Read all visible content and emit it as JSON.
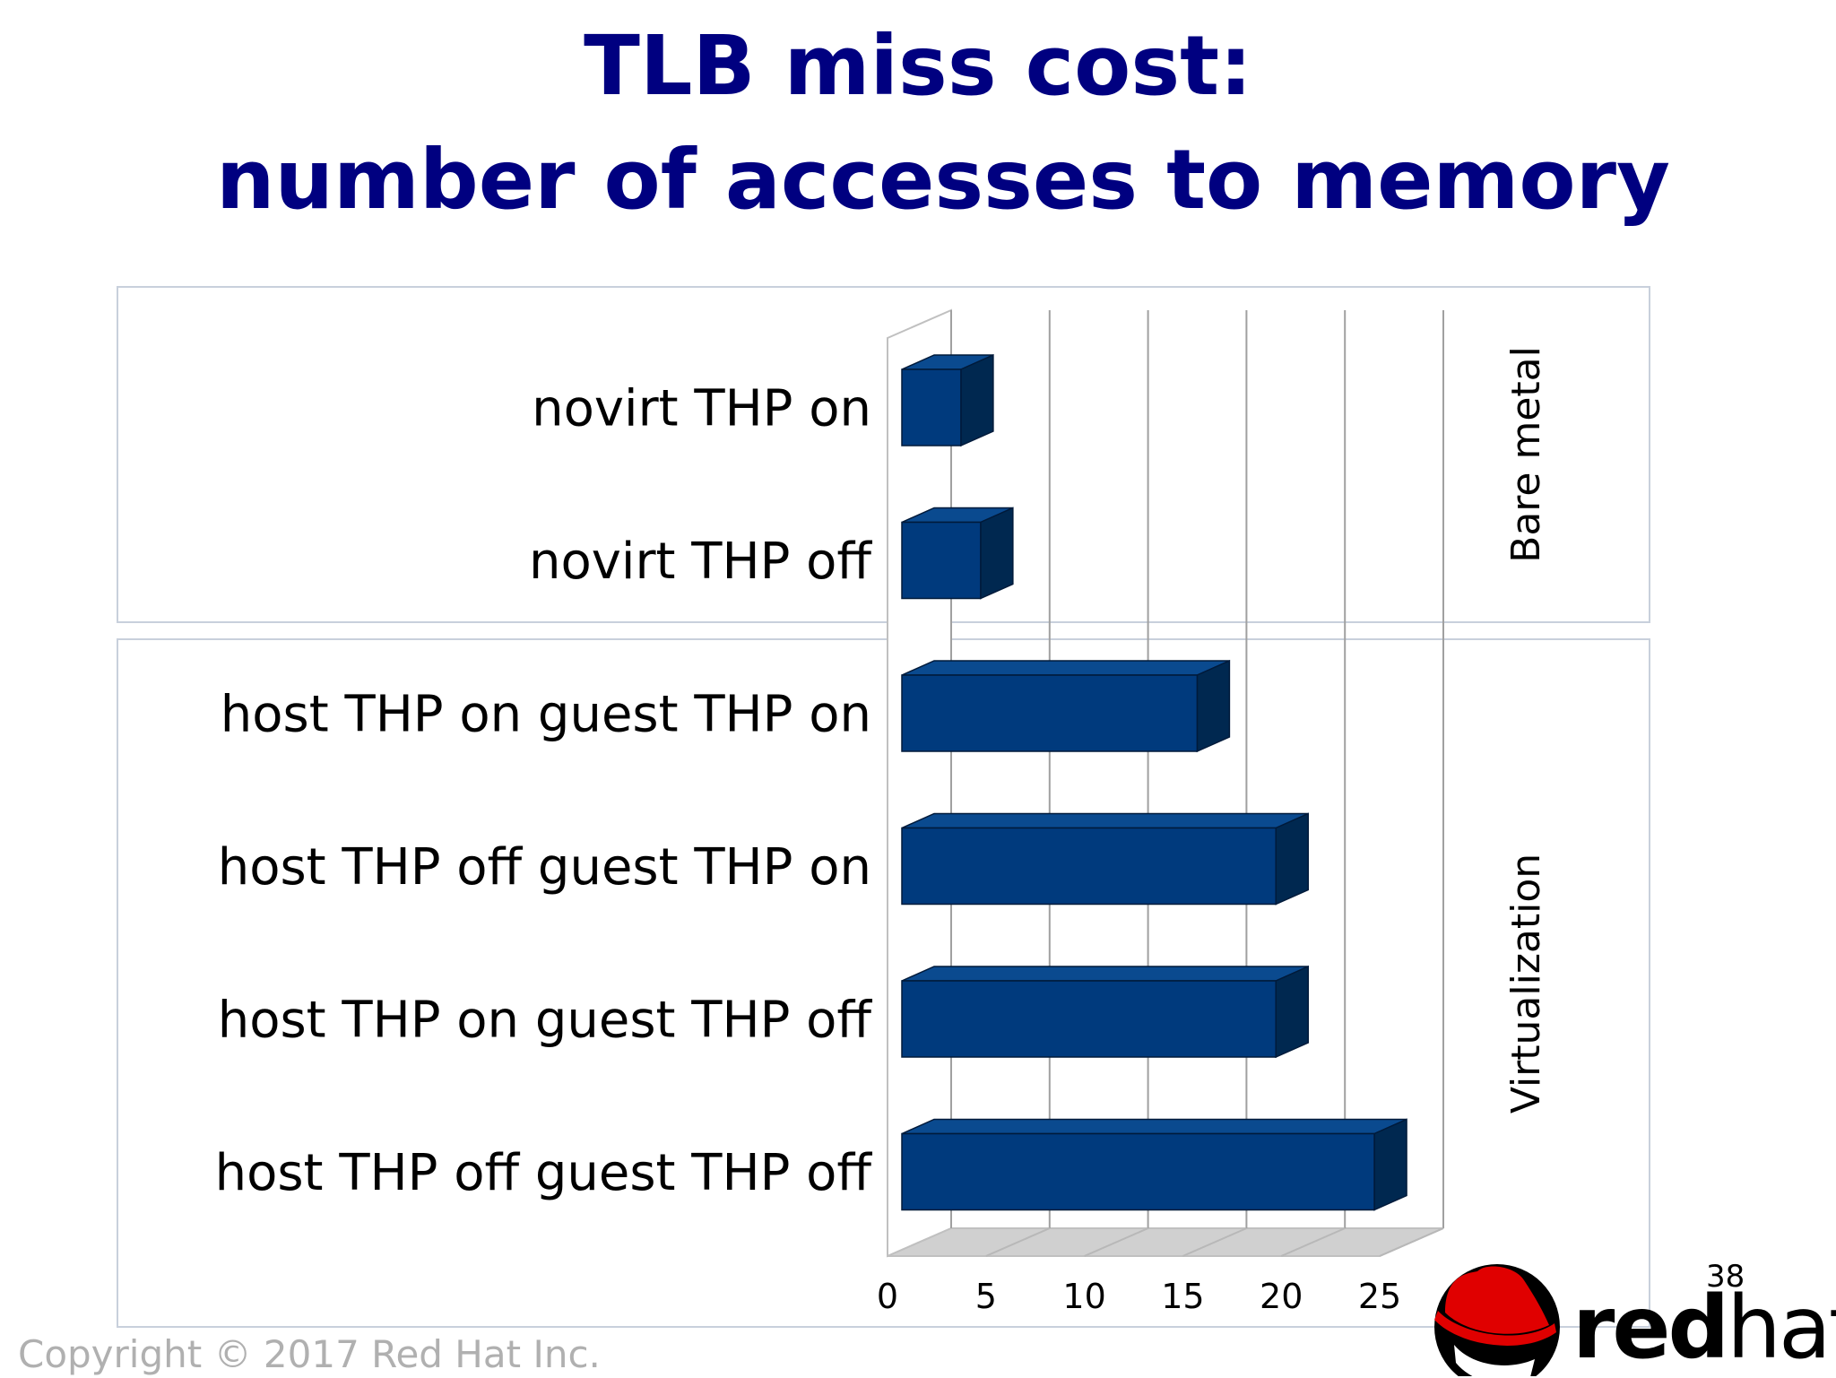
{
  "slide": {
    "title_line1": "TLB miss cost:",
    "title_line2": "number of accesses to memory",
    "copyright": "Copyright © 2017 Red Hat Inc.",
    "page_number": "38",
    "logo": {
      "red": "red",
      "hat": "hat",
      "mark": "."
    }
  },
  "chart_data": {
    "type": "bar",
    "orientation": "horizontal",
    "style": "3d",
    "categories": [
      "novirt THP on",
      "novirt THP off",
      "host THP on guest THP on",
      "host THP off guest THP on",
      "host THP on guest THP off",
      "host THP off guest THP off"
    ],
    "values": [
      3,
      4,
      15,
      19,
      19,
      24
    ],
    "groups": [
      {
        "label": "Bare metal",
        "categories": [
          0,
          1
        ]
      },
      {
        "label": "Virtualization",
        "categories": [
          2,
          3,
          4,
          5
        ]
      }
    ],
    "xticks": [
      "0",
      "5",
      "10",
      "15",
      "20",
      "25"
    ],
    "xlim": [
      0,
      25
    ],
    "grid": true,
    "bar_color": "#003a7d",
    "bar_side_color": "#002850",
    "bar_top_color": "#0a4a8f"
  }
}
